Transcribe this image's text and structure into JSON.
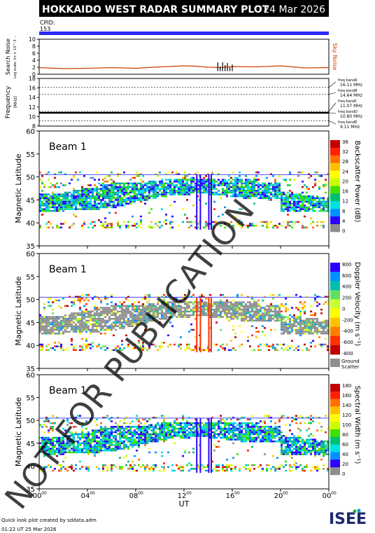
{
  "header": {
    "title": "HOKKAIDO WEST RADAR SUMMARY PLOT",
    "date": "24 Mar 2026",
    "cpid_label": "CPID:",
    "cpid_value": "153"
  },
  "colors": {
    "header_bg": "#000000",
    "header_fg": "#ffffff",
    "cpid_bar": "#2a2aff",
    "noise_line": "#d04000",
    "ground_scatter": "#909090",
    "frame": "#000000"
  },
  "footer": {
    "credit": "Quick look plot created by sddata.adm",
    "timestamp": "01:22 UT 25 Mar 2026",
    "logo_text": "ISEE",
    "watermark": "NOT FOR PUBLICATION"
  },
  "chart_data": [
    {
      "type": "line",
      "panel": "search-noise",
      "ylabel": "Search Noise",
      "ylabel_sub": "Log scale, lin × 10^-3 ...",
      "right_label": "Sky Noise",
      "yticks": [
        "0",
        "2",
        "4",
        "6",
        "8",
        "10"
      ],
      "ylim": [
        0,
        10
      ],
      "x": [
        0,
        2,
        4,
        6,
        8,
        10,
        12,
        13,
        14,
        15,
        16,
        18,
        20,
        22,
        24
      ],
      "values": [
        1.9,
        1.6,
        1.7,
        1.9,
        1.7,
        2.1,
        2.4,
        2.3,
        2.0,
        1.9,
        2.2,
        2.1,
        2.4,
        1.8,
        1.9
      ],
      "spikes_x": [
        14.8,
        15.0,
        15.2,
        15.4,
        15.6,
        15.8,
        16.0
      ],
      "spikes_h": [
        3.4,
        2.2,
        3.4,
        2.6,
        3.2,
        2.0,
        2.8
      ]
    },
    {
      "type": "line",
      "panel": "frequency",
      "ylabel": "Frequency",
      "ylabel_sub": "(MHz)",
      "yticks": [
        "8",
        "10",
        "12",
        "14",
        "16",
        "18"
      ],
      "ylim": [
        8,
        18
      ],
      "x": [
        0,
        24
      ],
      "values": [
        10.8,
        10.8
      ],
      "bands": [
        {
          "label": "freq bandA",
          "value_text": "16.11 MHz",
          "value": 16.11
        },
        {
          "label": "freq bandB",
          "value_text": "14.64 MHz",
          "value": 14.64
        },
        {
          "label": "freq bandC",
          "value_text": "11.07 MHz",
          "value": 11.07
        },
        {
          "label": "freq bandD",
          "value_text": "10.80 MHz",
          "value": 10.8
        },
        {
          "label": "freq bandE",
          "value_text": "9.11 MHz",
          "value": 9.11
        }
      ]
    },
    {
      "type": "heatmap",
      "panel": "backscatter-power",
      "beam_label": "Beam  1",
      "ylabel": "Magnetic Latitude",
      "yticks": [
        "35",
        "40",
        "45",
        "50",
        "55",
        "60"
      ],
      "ylim": [
        35,
        60
      ],
      "colorbar_label": "Backscatter Power (dB)",
      "colorbar_ticks": [
        "0",
        "4",
        "8",
        "12",
        "16",
        "20",
        "24",
        "28",
        "32",
        "36"
      ],
      "colorbar_colors": [
        "#8e8e8e",
        "#2b00ff",
        "#0090ff",
        "#00e0e0",
        "#00c070",
        "#40e000",
        "#c8ff00",
        "#ffff00",
        "#ffc000",
        "#ff7000",
        "#ff2000",
        "#c00000"
      ],
      "ground_label": ""
    },
    {
      "type": "heatmap",
      "panel": "doppler-velocity",
      "beam_label": "Beam  1",
      "ylabel": "Magnetic Latitude",
      "yticks": [
        "35",
        "40",
        "45",
        "50",
        "55",
        "60"
      ],
      "ylim": [
        35,
        60
      ],
      "colorbar_label": "Doppler Velocity (m s⁻¹)",
      "colorbar_ticks": [
        "-800",
        "-600",
        "-400",
        "-200",
        "0",
        "200",
        "400",
        "600",
        "800"
      ],
      "colorbar_colors": [
        "#c00000",
        "#ff3000",
        "#ff8000",
        "#ffc000",
        "#ffff00",
        "#c8ff30",
        "#60e060",
        "#00c0b0",
        "#0090ff",
        "#2b00ff"
      ],
      "ground_label": "Ground Scatter"
    },
    {
      "type": "heatmap",
      "panel": "spectral-width",
      "beam_label": "Beam  1",
      "ylabel": "Magnetic Latitude",
      "yticks": [
        "35",
        "40",
        "45",
        "50",
        "55",
        "60"
      ],
      "ylim": [
        35,
        60
      ],
      "colorbar_label": "Spectral Width (m s⁻¹)",
      "colorbar_ticks": [
        "0",
        "20",
        "40",
        "60",
        "80",
        "100",
        "120",
        "140",
        "160",
        "180"
      ],
      "colorbar_colors": [
        "#8e8e8e",
        "#2b00ff",
        "#0090ff",
        "#00e0e0",
        "#00c070",
        "#40e000",
        "#c8ff00",
        "#ffff00",
        "#ffc000",
        "#ff7000",
        "#ff2000",
        "#c00000"
      ],
      "ground_label": ""
    }
  ],
  "x_axis": {
    "label": "UT",
    "ticks": [
      "00",
      "04",
      "08",
      "12",
      "16",
      "20",
      "00"
    ],
    "tick_sup": "00",
    "xlim": [
      0,
      24
    ]
  }
}
